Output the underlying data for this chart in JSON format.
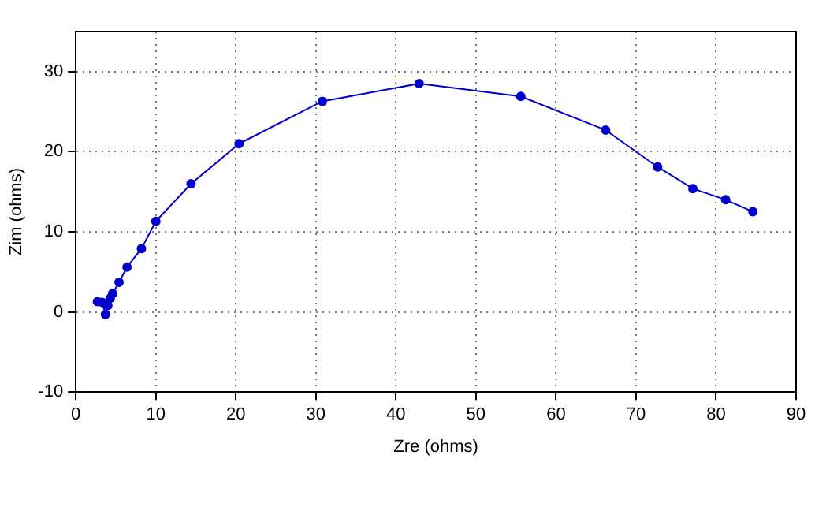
{
  "chart_data": {
    "type": "line",
    "xlabel": "Zre (ohms)",
    "ylabel": "Zim (ohms)",
    "series": [
      {
        "color": "#0000cc",
        "x": [
          2.7,
          3.3,
          3.7,
          4.0,
          4.3,
          4.6,
          5.4,
          6.4,
          8.2,
          10.0,
          14.4,
          20.4,
          30.8,
          42.9,
          55.6,
          66.2,
          72.7,
          77.1,
          81.2,
          84.6
        ],
        "values": [
          1.3,
          1.2,
          -0.3,
          0.8,
          1.7,
          2.3,
          3.7,
          5.6,
          7.9,
          11.3,
          16.0,
          21.0,
          26.3,
          28.5,
          26.9,
          22.7,
          18.1,
          15.4,
          14.0,
          12.5
        ]
      }
    ],
    "xlim": [
      0,
      90
    ],
    "xticks": [
      0,
      10,
      20,
      30,
      40,
      50,
      60,
      70,
      80,
      90
    ],
    "ylim": [
      -10,
      35
    ],
    "yticks": [
      -10,
      0,
      10,
      20,
      30
    ],
    "grid": true,
    "legend": false,
    "marker": "circle",
    "line_style": "solid"
  }
}
